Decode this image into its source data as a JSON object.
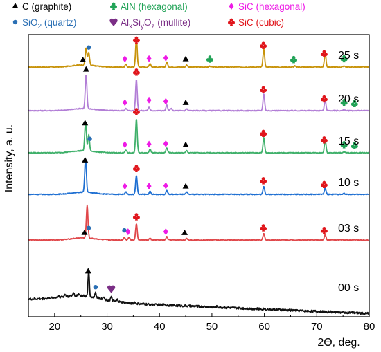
{
  "chart_data": {
    "type": "line",
    "xlabel": "2Θ, deg.",
    "ylabel": "Intensity, a. u.",
    "xlim": [
      15,
      80
    ],
    "xticks": [
      20,
      30,
      40,
      50,
      60,
      70,
      80
    ],
    "legend": [
      {
        "key": "graphite",
        "marker": "triangle",
        "label": "C (graphite)",
        "color": "#000000"
      },
      {
        "key": "aln",
        "marker": "club",
        "label": "AlN (hexagonal)",
        "color": "#21a357"
      },
      {
        "key": "sic_hex",
        "marker": "diamond",
        "label": "SiC (hexagonal)",
        "color": "#ee1ae6"
      },
      {
        "key": "quartz",
        "marker": "dot",
        "label_main": "SiO",
        "label_sub": "2",
        "label_tail": " (quartz)",
        "color": "#2a6fb4"
      },
      {
        "key": "mullite",
        "marker": "heart",
        "label_parts": [
          "Al",
          "x",
          "Si",
          "y",
          "O",
          "z",
          " (mullite)"
        ],
        "color": "#7b2f86"
      },
      {
        "key": "sic_cubic",
        "marker": "club",
        "label": "SiC (cubic)",
        "color": "#e0151b"
      }
    ],
    "series": [
      {
        "name": "25 s",
        "color": "#c8930a",
        "peaks": [
          [
            26.0,
            0.95
          ],
          [
            26.5,
            0.7
          ],
          [
            33.6,
            0.15
          ],
          [
            35.6,
            1.6
          ],
          [
            38.2,
            0.2
          ],
          [
            41.4,
            0.28
          ],
          [
            45.2,
            0.12
          ],
          [
            49.6,
            0.05
          ],
          [
            59.9,
            1.0
          ],
          [
            65.8,
            0.06
          ],
          [
            71.6,
            0.8
          ],
          [
            75.2,
            0.07
          ]
        ],
        "markers": [
          {
            "type": "triangle",
            "x": 25.4
          },
          {
            "type": "dot",
            "x": 26.5
          },
          {
            "type": "diamond",
            "x": 33.4
          },
          {
            "type": "club_red",
            "x": 35.6
          },
          {
            "type": "diamond",
            "x": 38.0
          },
          {
            "type": "diamond",
            "x": 41.2
          },
          {
            "type": "triangle",
            "x": 45.0
          },
          {
            "type": "club_green",
            "x": 49.6
          },
          {
            "type": "club_red",
            "x": 59.8
          },
          {
            "type": "club_green",
            "x": 65.6
          },
          {
            "type": "club_red",
            "x": 71.4
          },
          {
            "type": "club_green",
            "x": 75.2
          }
        ]
      },
      {
        "name": "20 s",
        "color": "#b27ed6",
        "peaks": [
          [
            26.0,
            1.9
          ],
          [
            35.6,
            1.75
          ],
          [
            33.6,
            0.14
          ],
          [
            38.0,
            0.2
          ],
          [
            41.4,
            0.3
          ],
          [
            42.2,
            0.12
          ],
          [
            45.2,
            0.1
          ],
          [
            59.9,
            0.95
          ],
          [
            71.6,
            0.6
          ],
          [
            75.2,
            0.06
          ]
        ],
        "markers": [
          {
            "type": "triangle",
            "x": 26.0
          },
          {
            "type": "diamond",
            "x": 33.4
          },
          {
            "type": "club_red",
            "x": 35.6
          },
          {
            "type": "diamond",
            "x": 38.0
          },
          {
            "type": "diamond",
            "x": 41.2
          },
          {
            "type": "triangle",
            "x": 45.0
          },
          {
            "type": "club_red",
            "x": 59.8
          },
          {
            "type": "club_red",
            "x": 71.4
          },
          {
            "type": "club_green",
            "x": 75.2
          },
          {
            "type": "club_green",
            "x": 77.2
          }
        ]
      },
      {
        "name": "15 s",
        "color": "#3fb06a",
        "peaks": [
          [
            25.9,
            1.55
          ],
          [
            26.5,
            0.9
          ],
          [
            33.6,
            0.16
          ],
          [
            35.6,
            1.9
          ],
          [
            38.2,
            0.22
          ],
          [
            41.4,
            0.28
          ],
          [
            45.2,
            0.12
          ],
          [
            59.9,
            0.85
          ],
          [
            71.6,
            0.75
          ],
          [
            75.2,
            0.06
          ]
        ],
        "markers": [
          {
            "type": "triangle",
            "x": 25.8
          },
          {
            "type": "dot",
            "x": 26.7
          },
          {
            "type": "diamond",
            "x": 33.4
          },
          {
            "type": "club_red",
            "x": 35.6
          },
          {
            "type": "diamond",
            "x": 38.0
          },
          {
            "type": "diamond",
            "x": 41.2
          },
          {
            "type": "triangle",
            "x": 45.0
          },
          {
            "type": "club_red",
            "x": 59.8
          },
          {
            "type": "club_red",
            "x": 71.4
          },
          {
            "type": "club_green",
            "x": 75.2
          },
          {
            "type": "club_green",
            "x": 77.2
          }
        ]
      },
      {
        "name": "10 s",
        "color": "#1e6fd2",
        "peaks": [
          [
            25.9,
            1.85
          ],
          [
            33.6,
            0.15
          ],
          [
            35.6,
            1.05
          ],
          [
            38.2,
            0.16
          ],
          [
            41.4,
            0.22
          ],
          [
            45.2,
            0.12
          ],
          [
            59.9,
            0.45
          ],
          [
            71.6,
            0.35
          ],
          [
            75.2,
            0.05
          ]
        ],
        "markers": [
          {
            "type": "triangle",
            "x": 25.8
          },
          {
            "type": "diamond",
            "x": 33.4
          },
          {
            "type": "club_red",
            "x": 35.6
          },
          {
            "type": "diamond",
            "x": 38.0
          },
          {
            "type": "diamond",
            "x": 41.2
          },
          {
            "type": "triangle",
            "x": 45.0
          },
          {
            "type": "club_red",
            "x": 59.8
          },
          {
            "type": "club_red",
            "x": 71.4
          }
        ]
      },
      {
        "name": "03 s",
        "color": "#e0474a",
        "peaks": [
          [
            26.2,
            1.8
          ],
          [
            33.3,
            0.15
          ],
          [
            34.2,
            0.16
          ],
          [
            35.6,
            0.9
          ],
          [
            38.2,
            0.1
          ],
          [
            41.4,
            0.18
          ],
          [
            45.2,
            0.08
          ],
          [
            59.9,
            0.35
          ],
          [
            71.6,
            0.32
          ]
        ],
        "markers": [
          {
            "type": "triangle",
            "x": 25.7
          },
          {
            "type": "dot",
            "x": 26.5
          },
          {
            "type": "dot",
            "x": 33.3
          },
          {
            "type": "diamond",
            "x": 34.0
          },
          {
            "type": "club_red",
            "x": 35.6
          },
          {
            "type": "diamond",
            "x": 41.2
          },
          {
            "type": "triangle",
            "x": 44.8
          },
          {
            "type": "club_red",
            "x": 59.8
          },
          {
            "type": "club_red",
            "x": 71.4
          }
        ]
      },
      {
        "name": "00 s",
        "color": "#111111",
        "peaks": [
          [
            20.8,
            0.08
          ],
          [
            22.0,
            0.12
          ],
          [
            23.6,
            0.18
          ],
          [
            24.6,
            0.14
          ],
          [
            26.5,
            1.45
          ],
          [
            27.8,
            0.3
          ],
          [
            29.3,
            0.15
          ],
          [
            30.8,
            0.2
          ],
          [
            32.0,
            0.12
          ],
          [
            35.3,
            0.08
          ],
          [
            41.0,
            0.06
          ],
          [
            51.0,
            0.05
          ],
          [
            60.0,
            0.04
          ]
        ],
        "markers": [
          {
            "type": "triangle",
            "x": 26.4
          },
          {
            "type": "dot",
            "x": 27.8
          },
          {
            "type": "heart",
            "x": 30.8
          }
        ]
      }
    ]
  }
}
